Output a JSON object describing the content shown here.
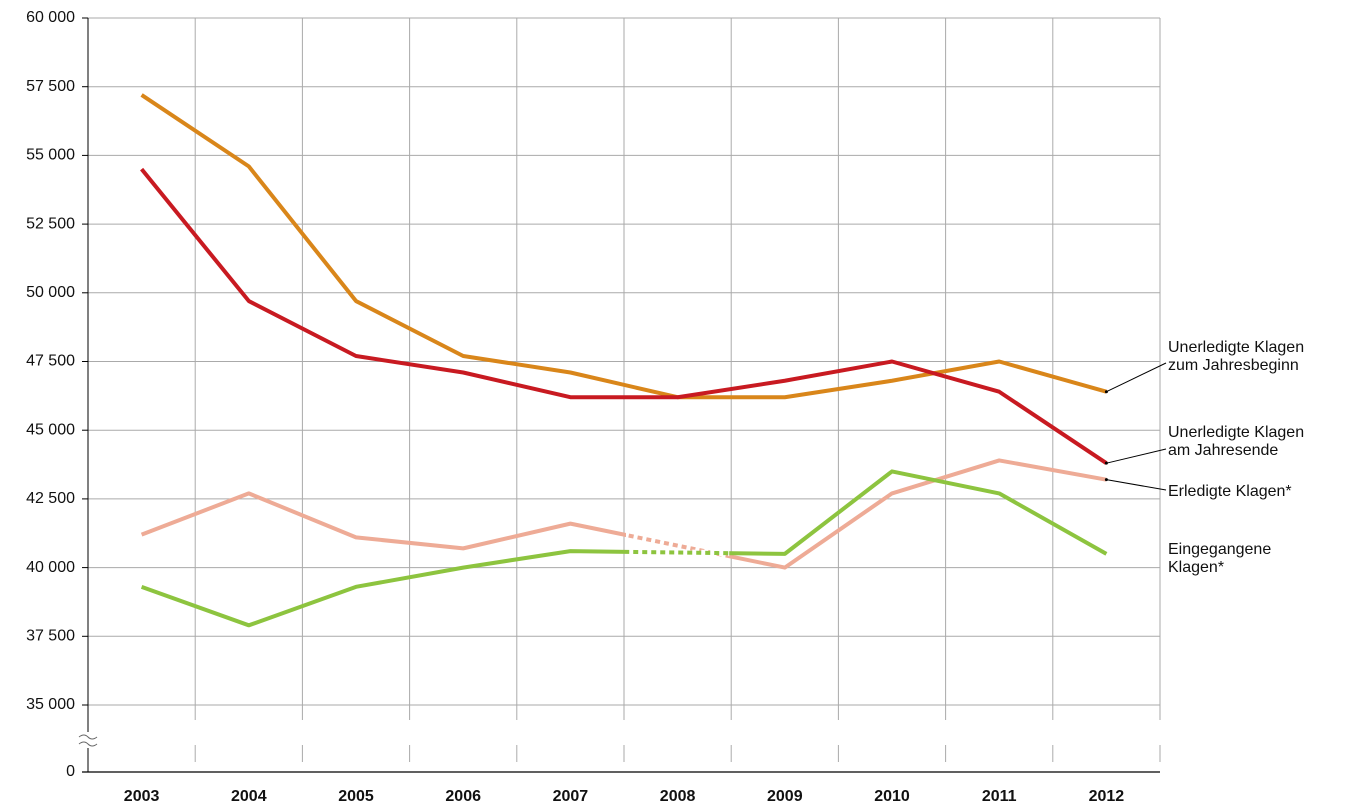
{
  "chart_data": {
    "type": "line",
    "categories": [
      "2003",
      "2004",
      "2005",
      "2006",
      "2007",
      "2008",
      "2009",
      "2010",
      "2011",
      "2012"
    ],
    "series": [
      {
        "name": "Unerledigte Klagen\nzum Jahresbeginn",
        "color": "#d9861a",
        "values": [
          57200,
          54600,
          49700,
          47700,
          47100,
          46200,
          46200,
          46800,
          47500,
          46400
        ]
      },
      {
        "name": "Unerledigte Klagen\nam Jahresende",
        "color": "#c81a21",
        "values": [
          54500,
          49700,
          47700,
          47100,
          46200,
          46200,
          46800,
          47500,
          46400,
          43800
        ]
      },
      {
        "name": "Erledigte Klagen*",
        "color": "#eeab96",
        "values": [
          41200,
          42700,
          41100,
          40700,
          41600,
          40800,
          40000,
          42700,
          43900,
          43200
        ],
        "dotted_categories": [
          "2008"
        ]
      },
      {
        "name": "Eingegangene\nKlagen*",
        "color": "#8dc43f",
        "values": [
          39300,
          37900,
          39300,
          40000,
          40600,
          40550,
          40500,
          43500,
          42700,
          40500
        ],
        "dotted_categories": [
          "2008"
        ]
      }
    ],
    "ylim": [
      0,
      60000
    ],
    "axis_break": [
      0,
      35000
    ],
    "yticks": [
      0,
      {
        "value": 35000,
        "label": "35 000"
      },
      {
        "value": 37500,
        "label": "37 500"
      },
      {
        "value": 40000,
        "label": "40 000"
      },
      {
        "value": 42500,
        "label": "42 500"
      },
      {
        "value": 45000,
        "label": "45 000"
      },
      {
        "value": 47500,
        "label": "47 500"
      },
      {
        "value": 50000,
        "label": "50 000"
      },
      {
        "value": 52500,
        "label": "52 500"
      },
      {
        "value": 55000,
        "label": "55 000"
      },
      {
        "value": 57500,
        "label": "57 500"
      },
      {
        "value": 60000,
        "label": "60 000"
      }
    ],
    "grid": true
  }
}
